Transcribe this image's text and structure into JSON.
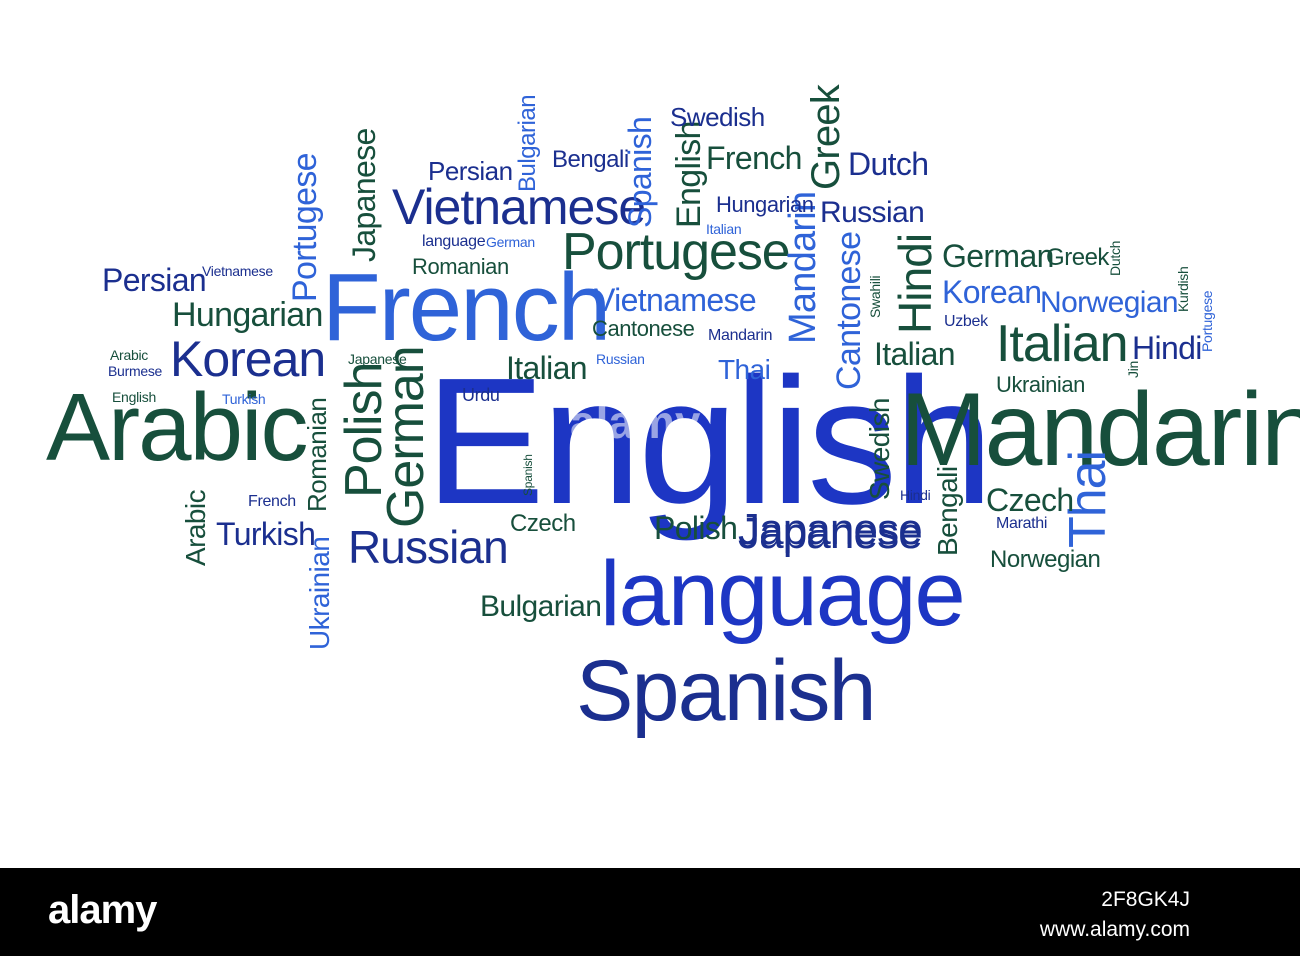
{
  "palette": {
    "blue": "#1d36c4",
    "brightblue": "#2f63d8",
    "navy": "#1b2f8f",
    "green": "#174f3c",
    "teal": "#205f6a"
  },
  "words": [
    [
      "English",
      "blue"
    ],
    [
      "Mandarin",
      "green"
    ],
    [
      "language",
      "blue"
    ],
    [
      "Spanish",
      "navy"
    ],
    [
      "Arabic",
      "green"
    ],
    [
      "French",
      "brightblue"
    ],
    [
      "Portugese",
      "green"
    ],
    [
      "Vietnamese",
      "navy"
    ],
    [
      "Italian",
      "green"
    ],
    [
      "Japanese",
      "navy"
    ],
    [
      "Russian",
      "navy"
    ],
    [
      "Korean",
      "navy"
    ],
    [
      "Polish",
      "green"
    ],
    [
      "German",
      "green"
    ],
    [
      "Hindi",
      "green"
    ],
    [
      "Thai",
      "brightblue"
    ],
    [
      "Mandarin",
      "brightblue"
    ],
    [
      "Cantonese",
      "brightblue"
    ],
    [
      "Portugese",
      "brightblue"
    ],
    [
      "Japanese",
      "green"
    ],
    [
      "Spanish",
      "brightblue"
    ],
    [
      "English",
      "green"
    ],
    [
      "Greek",
      "green"
    ],
    [
      "Bulgarian",
      "brightblue"
    ],
    [
      "Persian",
      "navy"
    ],
    [
      "Bengali",
      "navy"
    ],
    [
      "Swedish",
      "navy"
    ],
    [
      "French",
      "green"
    ],
    [
      "Dutch",
      "navy"
    ],
    [
      "Hungarian",
      "navy"
    ],
    [
      "Russian",
      "navy"
    ],
    [
      "Italian",
      "brightblue"
    ],
    [
      "language",
      "navy"
    ],
    [
      "German",
      "brightblue"
    ],
    [
      "Romanian",
      "green"
    ],
    [
      "Persian",
      "navy"
    ],
    [
      "Vietnamese",
      "navy"
    ],
    [
      "Hungarian",
      "green"
    ],
    [
      "Vietnamese",
      "brightblue"
    ],
    [
      "Cantonese",
      "green"
    ],
    [
      "Mandarin",
      "navy"
    ],
    [
      "Arabic",
      "green"
    ],
    [
      "Burmese",
      "navy"
    ],
    [
      "English",
      "green"
    ],
    [
      "Turkish",
      "brightblue"
    ],
    [
      "Japanese",
      "green"
    ],
    [
      "Russian",
      "brightblue"
    ],
    [
      "Italian",
      "green"
    ],
    [
      "Thai",
      "brightblue"
    ],
    [
      "Urdu",
      "navy"
    ],
    [
      "Romanian",
      "green"
    ],
    [
      "Spanish",
      "green"
    ],
    [
      "French",
      "navy"
    ],
    [
      "Arabic",
      "green"
    ],
    [
      "Turkish",
      "navy"
    ],
    [
      "Ukrainian",
      "brightblue"
    ],
    [
      "Czech",
      "green"
    ],
    [
      "Polish",
      "green"
    ],
    [
      "Japanese",
      "navy"
    ],
    [
      "Bulgarian",
      "green"
    ],
    [
      "Hindi",
      "navy"
    ],
    [
      "Bengali",
      "green"
    ],
    [
      "Czech",
      "green"
    ],
    [
      "Marathi",
      "navy"
    ],
    [
      "Norwegian",
      "green"
    ],
    [
      "German",
      "green"
    ],
    [
      "Greek",
      "green"
    ],
    [
      "Dutch",
      "green"
    ],
    [
      "Korean",
      "brightblue"
    ],
    [
      "Norwegian",
      "brightblue"
    ],
    [
      "Swahili",
      "green"
    ],
    [
      "Uzbek",
      "navy"
    ],
    [
      "Italian",
      "green"
    ],
    [
      "language",
      "navy"
    ],
    [
      "Hindi",
      "navy"
    ],
    [
      "Ukrainian",
      "green"
    ],
    [
      "Kurdish",
      "green"
    ],
    [
      "Portugese",
      "brightblue"
    ],
    [
      "Jin",
      "green"
    ],
    [
      "Swedish",
      "green"
    ],
    [
      "Thai",
      "brightblue"
    ]
  ],
  "watermark": "alamy",
  "footer": {
    "logo": "alamy",
    "image_id": "2F8GK4J",
    "url": "www.alamy.com"
  }
}
